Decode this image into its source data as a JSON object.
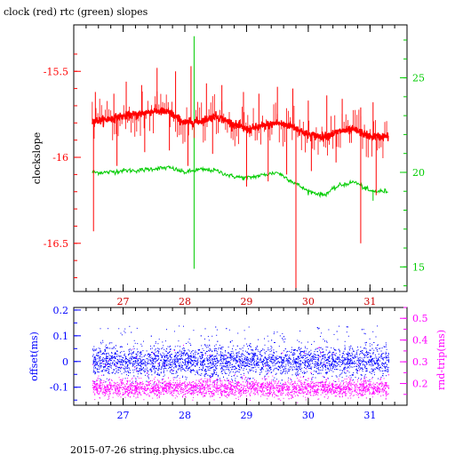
{
  "chart_data": [
    {
      "type": "line",
      "title": "clock (red) rtc (green) slopes",
      "ylabel_left": "clockslope",
      "ylabel_right": "",
      "x_ticks": [
        "27",
        "28",
        "29",
        "30",
        "31"
      ],
      "xlim": [
        26.2,
        31.6
      ],
      "ylim_left": [
        -16.78,
        -15.23
      ],
      "ylim_right": [
        13.7,
        27.8
      ],
      "yticks_left": [
        "-15.5",
        "-16",
        "-16.5"
      ],
      "yticks_right": [
        "25",
        "20",
        "15"
      ],
      "colors": {
        "clock": "#ff0000",
        "rtc": "#00cc00",
        "axes_left": "#ff0000",
        "axes_right": "#00cc00"
      },
      "series": [
        {
          "name": "clock",
          "axis": "left",
          "x": [
            26.5,
            26.75,
            27.0,
            27.25,
            27.5,
            27.75,
            28.0,
            28.25,
            28.5,
            28.75,
            29.0,
            29.25,
            29.5,
            29.75,
            30.0,
            30.25,
            30.5,
            30.75,
            31.0,
            31.3
          ],
          "y": [
            -15.79,
            -15.78,
            -15.76,
            -15.75,
            -15.73,
            -15.74,
            -15.8,
            -15.79,
            -15.76,
            -15.8,
            -15.84,
            -15.82,
            -15.8,
            -15.82,
            -15.87,
            -15.88,
            -15.85,
            -15.84,
            -15.88,
            -15.88
          ],
          "spikes_up": [
            [
              26.55,
              -15.62
            ],
            [
              26.85,
              -15.63
            ],
            [
              27.05,
              -15.56
            ],
            [
              27.3,
              -15.58
            ],
            [
              27.55,
              -15.48
            ],
            [
              27.85,
              -15.5
            ],
            [
              28.1,
              -15.47
            ],
            [
              28.35,
              -15.57
            ],
            [
              28.6,
              -15.58
            ],
            [
              28.95,
              -15.62
            ],
            [
              29.2,
              -15.63
            ],
            [
              29.5,
              -15.59
            ],
            [
              29.75,
              -15.6
            ],
            [
              30.0,
              -15.67
            ],
            [
              30.3,
              -15.64
            ],
            [
              30.55,
              -15.66
            ],
            [
              30.85,
              -15.71
            ],
            [
              31.05,
              -15.68
            ]
          ],
          "spikes_down": [
            [
              26.52,
              -16.43
            ],
            [
              26.9,
              -16.05
            ],
            [
              27.35,
              -15.97
            ],
            [
              27.75,
              -15.96
            ],
            [
              28.05,
              -16.05
            ],
            [
              28.45,
              -15.98
            ],
            [
              29.0,
              -16.17
            ],
            [
              29.35,
              -16.14
            ],
            [
              29.65,
              -16.1
            ],
            [
              29.8,
              -16.76
            ],
            [
              30.05,
              -16.08
            ],
            [
              30.45,
              -16.03
            ],
            [
              30.85,
              -16.5
            ],
            [
              31.1,
              -16.22
            ]
          ]
        },
        {
          "name": "rtc",
          "axis": "right",
          "x": [
            26.5,
            26.75,
            27.0,
            27.25,
            27.5,
            27.75,
            28.0,
            28.25,
            28.5,
            28.75,
            29.0,
            29.25,
            29.5,
            29.75,
            30.0,
            30.25,
            30.5,
            30.75,
            31.0,
            31.3
          ],
          "y": [
            20.0,
            20.0,
            20.1,
            20.1,
            20.2,
            20.25,
            20.0,
            20.15,
            20.1,
            19.8,
            19.7,
            19.85,
            20.0,
            19.5,
            19.0,
            18.8,
            19.3,
            19.5,
            19.0,
            19.0
          ],
          "spikes": [
            [
              28.15,
              27.2
            ],
            [
              28.15,
              14.9
            ],
            [
              31.05,
              18.5
            ]
          ]
        }
      ]
    },
    {
      "type": "scatter",
      "title": "",
      "xlabel": "",
      "ylabel_left": "offset(ms)",
      "ylabel_right": "rnd-trip(ms)",
      "x_ticks": [
        "27",
        "28",
        "29",
        "30",
        "31"
      ],
      "xlim": [
        26.2,
        31.6
      ],
      "ylim_left": [
        -0.17,
        0.21
      ],
      "ylim_right": [
        0.1,
        0.55
      ],
      "yticks_left": [
        "0.2",
        "0.1",
        "0",
        "-0.1"
      ],
      "yticks_right": [
        "0.5",
        "0.4",
        "0.3",
        "0.2"
      ],
      "colors": {
        "offset": "#0000ff",
        "rndtrip": "#ff00ff"
      },
      "series": [
        {
          "name": "offset",
          "axis": "left",
          "x_range": [
            26.5,
            31.3
          ],
          "center": 0.0,
          "spread": 0.03,
          "outlier_max": 0.18
        },
        {
          "name": "rnd-trip",
          "axis": "right",
          "x_range": [
            26.5,
            31.3
          ],
          "center": 0.18,
          "spread": 0.02,
          "outlier_max": 0.55
        }
      ]
    }
  ],
  "footer": "2015-07-26 string.physics.ubc.ca"
}
